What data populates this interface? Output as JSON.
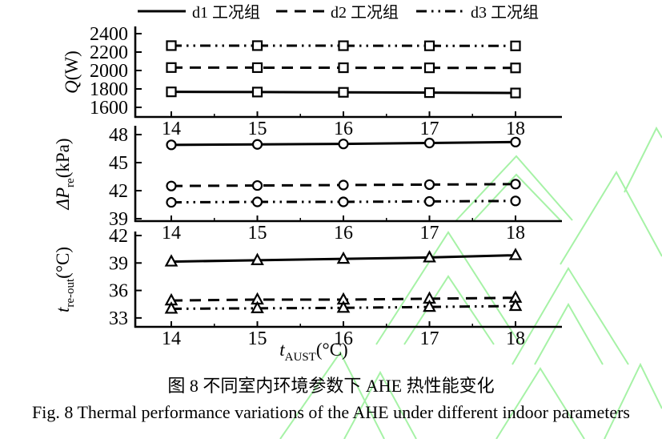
{
  "colors": {
    "background": "#ffffff",
    "line_black": "#000000",
    "watermark_green": "#a6f2a6"
  },
  "legend": {
    "items": [
      {
        "label": "d1 工况组",
        "line": "solid"
      },
      {
        "label": "d2 工况组",
        "line": "dashed"
      },
      {
        "label": "d3 工况组",
        "line": "dash-dot-dot"
      }
    ]
  },
  "captions": {
    "chinese": "图 8 不同室内环境参数下 AHE 热性能变化",
    "english": "Fig. 8 Thermal performance variations of the AHE under different indoor parameters"
  },
  "chart_data": [
    {
      "id": "q",
      "type": "line",
      "title": "",
      "x": [
        14,
        15,
        16,
        17,
        18
      ],
      "xlabel": "",
      "ylabel": "Q(W)",
      "ylabel_parts": [
        [
          "Q",
          "i"
        ],
        [
          "(W)",
          "n"
        ]
      ],
      "yticks": [
        2400,
        2200,
        2000,
        1800,
        1600
      ],
      "ylim": [
        1500,
        2480
      ],
      "marker": "square",
      "grid": false,
      "series": [
        {
          "name": "d1 工况组",
          "line": "solid",
          "values": [
            1768,
            1766,
            1763,
            1760,
            1756
          ]
        },
        {
          "name": "d2 工况组",
          "line": "dashed",
          "values": [
            2032,
            2031,
            2030,
            2029,
            2028
          ]
        },
        {
          "name": "d3 工况组",
          "line": "dash-dot-dot",
          "values": [
            2270,
            2270,
            2269,
            2268,
            2267
          ]
        }
      ]
    },
    {
      "id": "dp",
      "type": "line",
      "title": "",
      "x": [
        14,
        15,
        16,
        17,
        18
      ],
      "xlabel": "",
      "ylabel": "ΔP_re(kPa)",
      "ylabel_parts": [
        [
          "ΔP",
          "i"
        ],
        [
          "re",
          "sub"
        ],
        [
          "(kPa)",
          "n"
        ]
      ],
      "yticks": [
        48,
        45,
        42,
        39
      ],
      "ylim": [
        38.7,
        48.9
      ],
      "marker": "circle",
      "grid": false,
      "series": [
        {
          "name": "d1 工况组",
          "line": "solid",
          "values": [
            46.9,
            46.95,
            47.0,
            47.1,
            47.2
          ]
        },
        {
          "name": "d2 工况组",
          "line": "dashed",
          "values": [
            42.5,
            42.55,
            42.6,
            42.65,
            42.7
          ]
        },
        {
          "name": "d3 工况组",
          "line": "dash-dot-dot",
          "values": [
            40.75,
            40.8,
            40.8,
            40.85,
            40.9
          ]
        }
      ]
    },
    {
      "id": "t",
      "type": "line",
      "title": "",
      "x": [
        14,
        15,
        16,
        17,
        18
      ],
      "xlabel": "t_AUST(°C)",
      "xlabel_parts": [
        [
          "t",
          "i"
        ],
        [
          "AUST",
          "sub"
        ],
        [
          "(°C)",
          "n"
        ]
      ],
      "ylabel": "t_re-out(°C)",
      "ylabel_parts": [
        [
          "t",
          "i"
        ],
        [
          "re-out",
          "sub"
        ],
        [
          "(°C)",
          "n"
        ]
      ],
      "yticks": [
        42,
        39,
        36,
        33
      ],
      "ylim": [
        32.0,
        42.4
      ],
      "marker": "triangle",
      "grid": false,
      "series": [
        {
          "name": "d1 工况组",
          "line": "solid",
          "values": [
            39.15,
            39.3,
            39.45,
            39.6,
            39.85
          ]
        },
        {
          "name": "d2 工况组",
          "line": "dashed",
          "values": [
            34.9,
            35.0,
            35.0,
            35.1,
            35.2
          ]
        },
        {
          "name": "d3 工况组",
          "line": "dash-dot-dot",
          "values": [
            34.0,
            34.05,
            34.1,
            34.2,
            34.3
          ]
        }
      ]
    }
  ]
}
